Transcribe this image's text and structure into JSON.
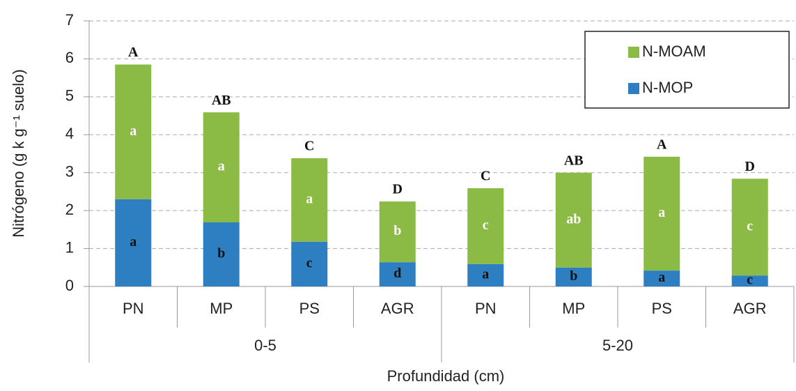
{
  "chart_data": {
    "type": "stacked_bar",
    "x_label": "Profundidad (cm)",
    "y_label": "Nitrógeno (g k g⁻¹ suelo)",
    "categories": [
      "PN",
      "MP",
      "PS",
      "AGR",
      "PN",
      "MP",
      "PS",
      "AGR"
    ],
    "groups": [
      {
        "name": "0-5",
        "size": 4
      },
      {
        "name": "5-20",
        "size": 4
      }
    ],
    "series": [
      {
        "name": "N-MOP",
        "color": "#2e7fc1",
        "values": [
          2.3,
          1.69,
          1.18,
          0.64,
          0.59,
          0.5,
          0.42,
          0.29
        ],
        "letters": [
          "a",
          "b",
          "c",
          "d",
          "a",
          "b",
          "a",
          "c"
        ]
      },
      {
        "name": "N-MOAM",
        "color": "#8cbb45",
        "values": [
          3.55,
          2.9,
          2.2,
          1.6,
          2.0,
          2.5,
          3.0,
          2.55
        ],
        "letters": [
          "a",
          "a",
          "a",
          "b",
          "c",
          "ab",
          "a",
          "c"
        ]
      }
    ],
    "total_letters": [
      "A",
      "AB",
      "C",
      "D",
      "C",
      "AB",
      "A",
      "D"
    ],
    "ylim": [
      0,
      7
    ],
    "yticks": [
      0,
      1,
      2,
      3,
      4,
      5,
      6,
      7
    ],
    "grid": true,
    "legend": "upper right"
  }
}
